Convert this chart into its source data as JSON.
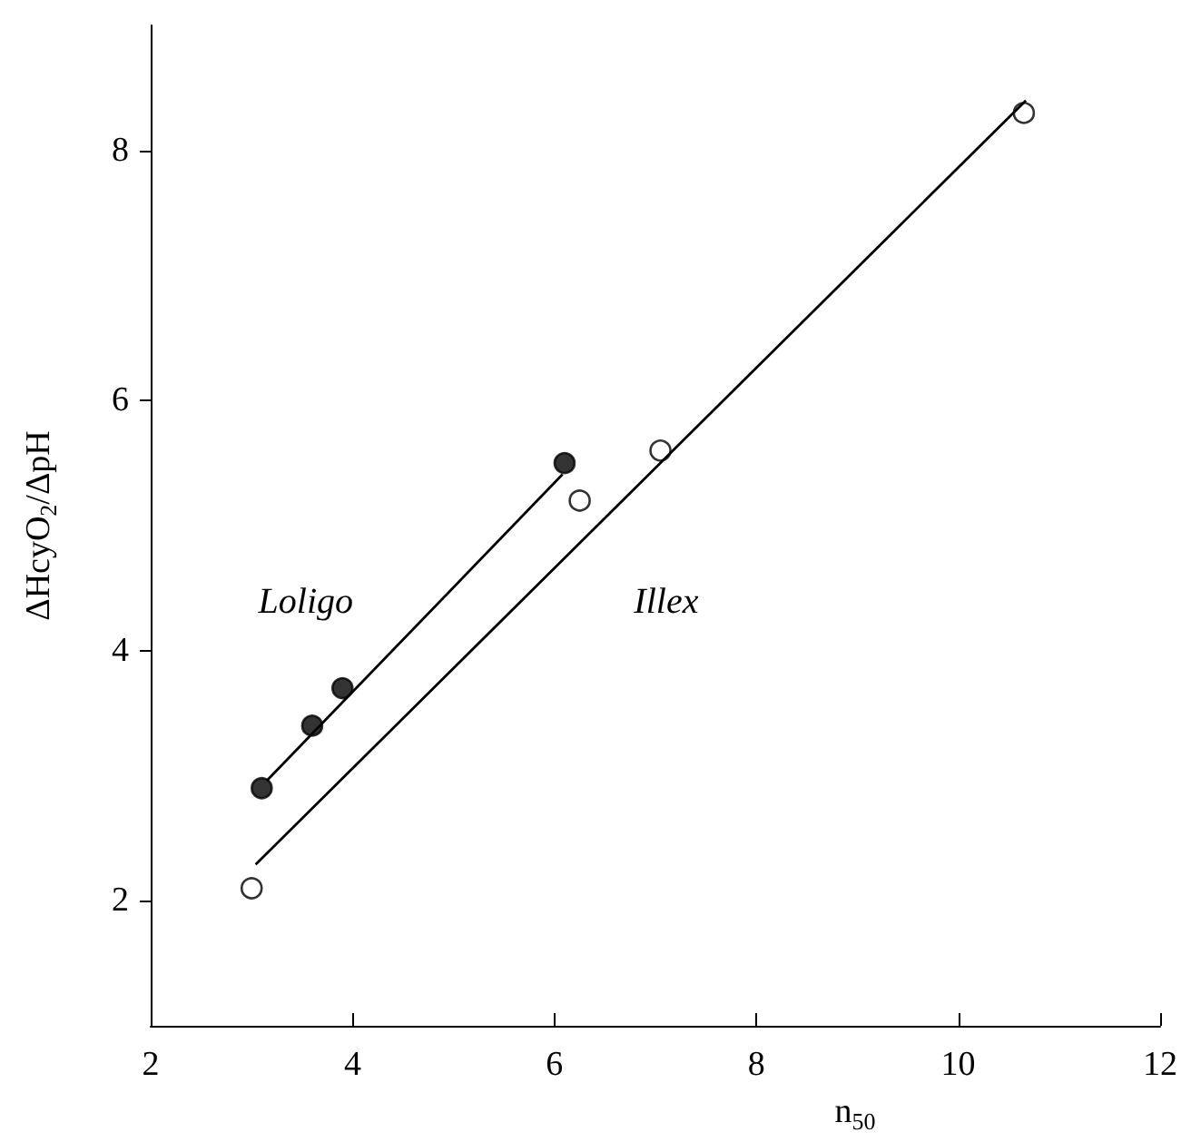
{
  "chart_data": {
    "type": "scatter",
    "xlabel": "n$_{50}$",
    "ylabel": "ΔHcyO$_{2}$/ΔpH",
    "xlim": [
      2,
      12
    ],
    "xticks": [
      2,
      4,
      6,
      8,
      10,
      12
    ],
    "ylim": [
      1,
      9
    ],
    "yticks": [
      2,
      4,
      6,
      8
    ],
    "grid": false,
    "legend": false,
    "marker": "circle",
    "series": [
      {
        "name": "Loligo",
        "color": "#000000",
        "x": [
          3.1,
          3.6,
          3.9,
          6.1
        ],
        "values": [
          2.9,
          3.4,
          3.7,
          5.5
        ]
      },
      {
        "name": "Illex",
        "color": "#ffffff",
        "x": [
          3.0,
          6.25,
          7.05,
          10.65
        ],
        "values": [
          2.1,
          5.2,
          5.6,
          8.3
        ]
      },
      {
        "type": "line",
        "color": "#000000",
        "marker": "none",
        "x": [
          3.15,
          6.08
        ],
        "values": [
          2.96,
          5.41
        ]
      },
      {
        "type": "line",
        "color": "#000000",
        "marker": "none",
        "x": [
          3.04,
          10.67
        ],
        "values": [
          2.29,
          8.4
        ]
      }
    ]
  }
}
